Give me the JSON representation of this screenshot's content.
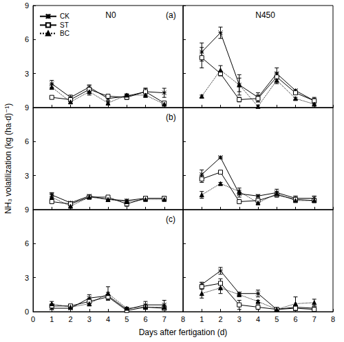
{
  "xlabel": "Days after fertigation (d)",
  "ylabel": "NH₃ volatilization (kg (ha·d)⁻¹)",
  "chart_data": [
    {
      "type": "line",
      "title": "N0",
      "annotation": "(a)",
      "legend": "upper left",
      "tick_labels": "y",
      "xlim": [
        0,
        8
      ],
      "xticks": [
        0,
        1,
        2,
        3,
        4,
        5,
        6,
        7,
        8
      ],
      "ylim": [
        0,
        9
      ],
      "yticks": [
        3,
        6,
        9
      ],
      "x": [
        1,
        2,
        3,
        4,
        5,
        6,
        7
      ],
      "series": [
        {
          "name": "CK",
          "color": "#000000",
          "marker": "asterisk",
          "line_style": "solid",
          "values": [
            2.1,
            0.9,
            1.8,
            0.8,
            1.0,
            1.4,
            1.3
          ],
          "errors": [
            0.3,
            0.2,
            0.2,
            0.2,
            0.2,
            0.3,
            0.4
          ]
        },
        {
          "name": "ST",
          "color": "#000000",
          "marker": "open_square",
          "line_style": "solid",
          "values": [
            0.9,
            0.7,
            1.6,
            1.0,
            0.9,
            1.4,
            0.4
          ],
          "errors": [
            0.1,
            0.1,
            0.2,
            0.1,
            0.2,
            0.3,
            0.1
          ]
        },
        {
          "name": "BC",
          "color": "#000000",
          "marker": "filled_triangle",
          "line_style": "dotted",
          "values": [
            1.8,
            0.5,
            1.4,
            0.4,
            1.1,
            1.1,
            0.3
          ],
          "errors": [
            0.2,
            0.1,
            0.3,
            0.1,
            0.1,
            0.2,
            0.1
          ]
        }
      ]
    },
    {
      "type": "line",
      "title": "N450",
      "tick_labels": false,
      "xlim": [
        0,
        8
      ],
      "xticks": [
        1,
        2,
        3,
        4,
        5,
        6,
        7,
        8
      ],
      "ylim": [
        0,
        9
      ],
      "yticks": [
        3,
        6,
        9
      ],
      "x": [
        1,
        2,
        3,
        4,
        5,
        6,
        7
      ],
      "series": [
        {
          "name": "CK",
          "color": "#000000",
          "marker": "asterisk",
          "line_style": "solid",
          "values": [
            4.9,
            6.6,
            2.0,
            0.9,
            3.0,
            1.5,
            0.6
          ],
          "errors": [
            0.8,
            0.5,
            0.9,
            0.4,
            0.5,
            0.1,
            0.3
          ]
        },
        {
          "name": "ST",
          "color": "#000000",
          "marker": "open_square",
          "line_style": "solid",
          "values": [
            4.4,
            3.0,
            0.7,
            0.8,
            2.7,
            1.3,
            0.6
          ],
          "errors": [
            0.9,
            0.2,
            0.2,
            0.3,
            0.4,
            0.1,
            0.2
          ]
        },
        {
          "name": "BC",
          "color": "#000000",
          "marker": "filled_triangle",
          "line_style": "dotted",
          "values": [
            1.0,
            3.3,
            2.0,
            0.1,
            2.4,
            0.8,
            0.3
          ],
          "errors": [
            0.1,
            0.4,
            0.6,
            0.1,
            0.3,
            0.1,
            0.1
          ]
        }
      ]
    },
    {
      "type": "line",
      "annotation": "(b)",
      "tick_labels": "y",
      "xlim": [
        0,
        8
      ],
      "xticks": [
        0,
        1,
        2,
        3,
        4,
        5,
        6,
        7,
        8
      ],
      "ylim": [
        0,
        9
      ],
      "yticks": [
        3,
        6,
        9
      ],
      "x": [
        1,
        2,
        3,
        4,
        5,
        6,
        7
      ],
      "series": [
        {
          "name": "CK",
          "color": "#000000",
          "marker": "asterisk",
          "line_style": "solid",
          "values": [
            1.3,
            0.6,
            1.2,
            0.9,
            0.8,
            1.0,
            1.0
          ],
          "errors": [
            0.2,
            0.1,
            0.1,
            0.2,
            0.1,
            0.1,
            0.1
          ]
        },
        {
          "name": "ST",
          "color": "#000000",
          "marker": "open_square",
          "line_style": "solid",
          "values": [
            0.7,
            0.5,
            1.1,
            1.1,
            0.5,
            1.0,
            1.0
          ],
          "errors": [
            0.1,
            0.1,
            0.1,
            0.1,
            0.2,
            0.1,
            0.1
          ]
        },
        {
          "name": "BC",
          "color": "#000000",
          "marker": "filled_triangle",
          "line_style": "dotted",
          "values": [
            1.1,
            0.3,
            1.1,
            0.9,
            0.7,
            0.9,
            0.9
          ],
          "errors": [
            0.3,
            0.1,
            0.1,
            0.1,
            0.1,
            0.1,
            0.1
          ]
        }
      ]
    },
    {
      "type": "line",
      "tick_labels": false,
      "xlim": [
        0,
        8
      ],
      "xticks": [
        1,
        2,
        3,
        4,
        5,
        6,
        7,
        8
      ],
      "ylim": [
        0,
        9
      ],
      "yticks": [
        3,
        6,
        9
      ],
      "x": [
        1,
        2,
        3,
        4,
        5,
        6,
        7
      ],
      "series": [
        {
          "name": "CK",
          "color": "#000000",
          "marker": "asterisk",
          "line_style": "solid",
          "values": [
            3.1,
            4.6,
            1.4,
            1.2,
            1.5,
            1.0,
            1.0
          ],
          "errors": [
            0.4,
            0.1,
            0.3,
            0.1,
            0.3,
            0.2,
            0.2
          ]
        },
        {
          "name": "ST",
          "color": "#000000",
          "marker": "open_square",
          "line_style": "solid",
          "values": [
            2.7,
            3.3,
            0.7,
            0.8,
            1.3,
            0.9,
            0.8
          ],
          "errors": [
            0.3,
            0.1,
            0.1,
            0.1,
            0.2,
            0.1,
            0.1
          ]
        },
        {
          "name": "BC",
          "color": "#000000",
          "marker": "filled_triangle",
          "line_style": "dotted",
          "values": [
            1.3,
            2.3,
            1.6,
            0.6,
            1.4,
            0.8,
            0.8
          ],
          "errors": [
            0.3,
            0.1,
            0.3,
            0.1,
            0.2,
            0.1,
            0.1
          ]
        }
      ]
    },
    {
      "type": "line",
      "annotation": "(c)",
      "xlim": [
        0,
        8
      ],
      "xticks": [
        0,
        1,
        2,
        3,
        4,
        5,
        6,
        7,
        8
      ],
      "ylim": [
        0,
        9
      ],
      "yticks": [
        0,
        3,
        6,
        9
      ],
      "x": [
        1,
        2,
        3,
        4,
        5,
        6,
        7
      ],
      "series": [
        {
          "name": "CK",
          "color": "#000000",
          "marker": "asterisk",
          "line_style": "solid",
          "values": [
            0.3,
            0.3,
            1.2,
            1.4,
            0.2,
            0.6,
            0.6
          ],
          "errors": [
            0.1,
            0.1,
            0.3,
            0.3,
            0.1,
            0.3,
            0.4
          ]
        },
        {
          "name": "ST",
          "color": "#000000",
          "marker": "open_square",
          "line_style": "solid",
          "values": [
            0.5,
            0.5,
            0.9,
            1.3,
            0.1,
            0.4,
            0.3
          ],
          "errors": [
            0.1,
            0.1,
            0.2,
            0.2,
            0.1,
            0.2,
            0.1
          ]
        },
        {
          "name": "BC",
          "color": "#000000",
          "marker": "filled_triangle",
          "line_style": "dotted",
          "values": [
            0.7,
            0.4,
            0.7,
            1.6,
            0.3,
            0.4,
            0.4
          ],
          "errors": [
            0.2,
            0.1,
            0.2,
            0.6,
            0.1,
            0.1,
            0.1
          ]
        }
      ]
    },
    {
      "type": "line",
      "tick_labels": "x",
      "xlim": [
        0,
        8
      ],
      "xticks": [
        1,
        2,
        3,
        4,
        5,
        6,
        7,
        8
      ],
      "ylim": [
        0,
        9
      ],
      "yticks": [
        0,
        3,
        6,
        9
      ],
      "x": [
        1,
        2,
        3,
        4,
        5,
        6,
        7
      ],
      "series": [
        {
          "name": "CK",
          "color": "#000000",
          "marker": "asterisk",
          "line_style": "solid",
          "values": [
            2.4,
            3.6,
            1.6,
            1.6,
            0.2,
            0.4,
            0.3
          ],
          "errors": [
            0.2,
            0.3,
            0.1,
            0.3,
            0.1,
            0.1,
            0.1
          ]
        },
        {
          "name": "ST",
          "color": "#000000",
          "marker": "open_square",
          "line_style": "solid",
          "values": [
            2.2,
            2.5,
            0.6,
            0.4,
            0.2,
            0.3,
            0.2
          ],
          "errors": [
            0.2,
            0.4,
            0.4,
            0.2,
            0.1,
            0.2,
            0.1
          ]
        },
        {
          "name": "BC",
          "color": "#000000",
          "marker": "filled_triangle",
          "line_style": "dotted",
          "values": [
            1.6,
            2.1,
            1.5,
            0.9,
            0.2,
            0.7,
            0.8
          ],
          "errors": [
            0.4,
            0.5,
            0.1,
            0.1,
            0.1,
            0.6,
            0.3
          ]
        }
      ]
    }
  ]
}
